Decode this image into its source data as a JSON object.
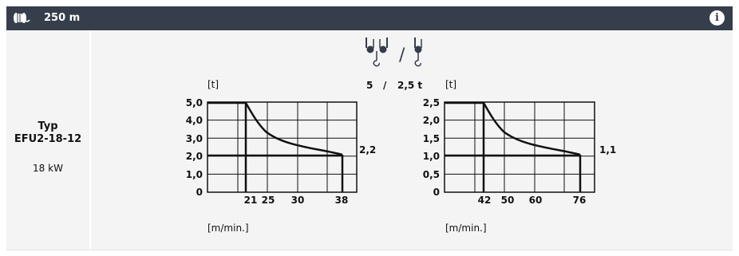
{
  "header": {
    "title": "250 m",
    "spool_icon": "cable-spool-icon",
    "info_icon": "info-icon",
    "info_label": "i"
  },
  "product": {
    "typ_label": "Typ",
    "model": "EFU2-18-12",
    "power": "18 kW"
  },
  "capacity": {
    "icons": "hook-reeving-icons",
    "separator": "/",
    "left": "5",
    "slash": "/",
    "right": "2,5 t"
  },
  "charts": [
    {
      "unit_y": "[t]",
      "unit_x": "[m/min.]",
      "y_ticks": [
        "5,0",
        "4,0",
        "3,0",
        "2,0",
        "1,0",
        "0"
      ],
      "x_ticks": [
        "21",
        "25",
        "30",
        "38"
      ],
      "end_value": "2,2"
    },
    {
      "unit_y": "[t]",
      "unit_x": "[m/min.]",
      "y_ticks": [
        "2,5",
        "2,0",
        "1,5",
        "1,0",
        "0,5",
        "0"
      ],
      "x_ticks": [
        "42",
        "50",
        "60",
        "76"
      ],
      "end_value": "1,1"
    }
  ],
  "colors": {
    "header_bg": "#363d4b",
    "panel_bg": "#f4f4f4"
  }
}
